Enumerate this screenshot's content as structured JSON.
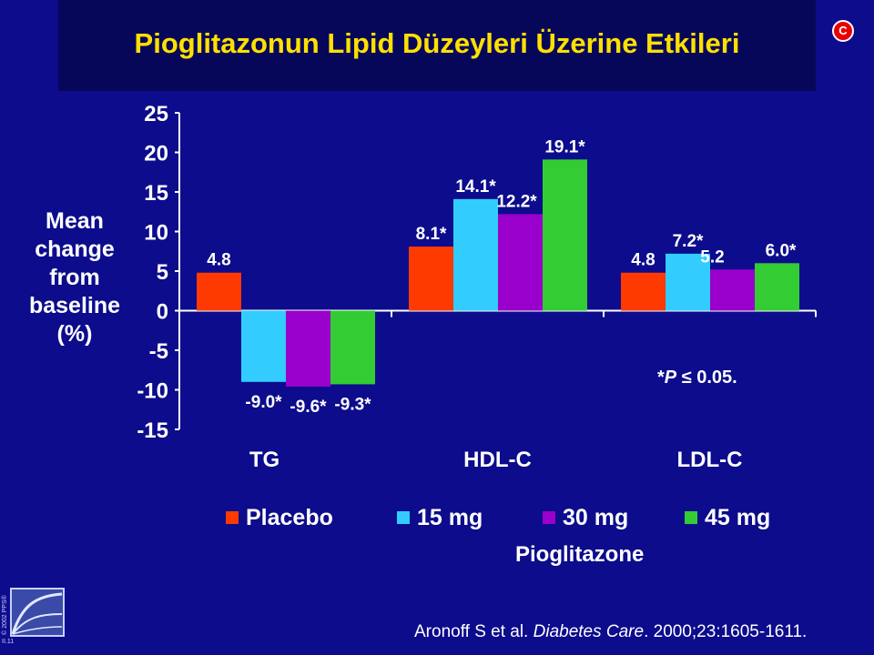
{
  "slide": {
    "title": "Pioglitazonun Lipid Düzeyleri Üzerine Etkileri",
    "badge": "C",
    "significance_prefix": "*",
    "significance_var": "P",
    "significance_rest": " ≤ 0.05.",
    "citation_authors": "Aronoff S et al. ",
    "citation_journal": "Diabetes Care",
    "citation_rest": ". 2000;23:1605-1611.",
    "copyright": "© 2002 PPS®",
    "slide_id": "II.11"
  },
  "chart_data": {
    "type": "bar",
    "ylabel": "Mean change from baseline (%)",
    "ylabel_lines": [
      "Mean",
      "change",
      "from",
      "baseline",
      "(%)"
    ],
    "ylim": [
      -15,
      25
    ],
    "yticks": [
      25,
      20,
      15,
      10,
      5,
      0,
      -5,
      -10,
      -15
    ],
    "grid": false,
    "legend_position": "bottom",
    "legend_group_label": "Pioglitazone",
    "categories": [
      "TG",
      "HDL-C",
      "LDL-C"
    ],
    "series": [
      {
        "name": "Placebo",
        "color": "#ff3a00",
        "values": [
          4.8,
          8.1,
          4.8
        ],
        "labels": [
          "4.8",
          "8.1*",
          "4.8"
        ]
      },
      {
        "name": "15 mg",
        "color": "#33ccff",
        "values": [
          -9.0,
          14.1,
          7.2
        ],
        "labels": [
          "-9.0*",
          "14.1*",
          "7.2*"
        ]
      },
      {
        "name": "30 mg",
        "color": "#9900cc",
        "values": [
          -9.6,
          12.2,
          5.2
        ],
        "labels": [
          "-9.6*",
          "12.2*",
          "5.2"
        ]
      },
      {
        "name": "45 mg",
        "color": "#33cc33",
        "values": [
          -9.3,
          19.1,
          6.0
        ],
        "labels": [
          "-9.3*",
          "19.1*",
          "6.0*"
        ]
      }
    ]
  }
}
